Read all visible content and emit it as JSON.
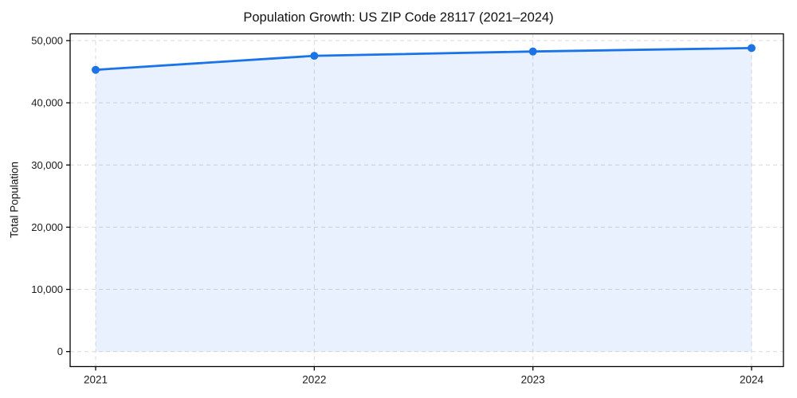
{
  "chart_data": {
    "type": "area",
    "title": "Population Growth: US ZIP Code 28117 (2021–2024)",
    "xlabel": "",
    "ylabel": "Total Population",
    "categories": [
      "2021",
      "2022",
      "2023",
      "2024"
    ],
    "series": [
      {
        "name": "Total Population",
        "values": [
          45300,
          47550,
          48250,
          48800
        ]
      }
    ],
    "ylim": [
      0,
      50000
    ],
    "yticks": [
      0,
      10000,
      20000,
      30000,
      40000,
      50000
    ],
    "grid": true,
    "grid_style": "dashed",
    "legend_position": "none",
    "line_color": "#1a73e8",
    "marker": "circle",
    "fill_color": "#1a73e8",
    "fill_opacity": 0.1,
    "grid_color": "#d9d9d9",
    "spine_color": "#000000",
    "background_color": "#ffffff"
  }
}
